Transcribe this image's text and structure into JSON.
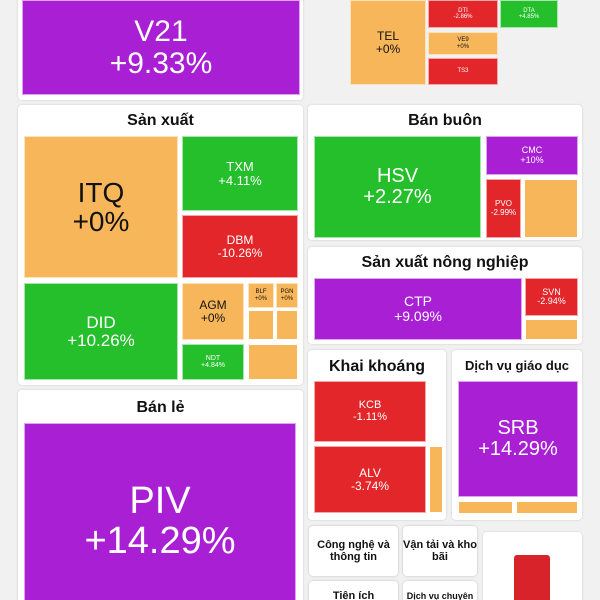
{
  "sectors": [
    {
      "tiles": [
        {
          "ticker": "V21",
          "change": "+9.33%",
          "color": "#a81fd4"
        },
        {
          "ticker": "TEL",
          "change": "+0%",
          "color": "#f8b65b"
        },
        {
          "ticker": "DTI",
          "change": "-2.86%",
          "color": "#e2262a"
        },
        {
          "ticker": "VE9",
          "change": "+0%",
          "color": "#f8b65b"
        },
        {
          "ticker": "TS3",
          "color": "#e2262a"
        },
        {
          "ticker": "DTA",
          "change": "+4.85%",
          "color": "#25bf2c"
        }
      ]
    },
    {
      "title": "Sản xuất",
      "tiles": [
        {
          "ticker": "ITQ",
          "change": "+0%",
          "color": "#f8b65b"
        },
        {
          "ticker": "TXM",
          "change": "+4.11%",
          "color": "#25bf2c"
        },
        {
          "ticker": "DBM",
          "change": "-10.26%",
          "color": "#e2262a"
        },
        {
          "ticker": "DID",
          "change": "+10.26%",
          "color": "#25bf2c"
        },
        {
          "ticker": "AGM",
          "change": "+0%",
          "color": "#f8b65b"
        },
        {
          "ticker": "BLF",
          "change": "+0%",
          "color": "#f8b65b"
        },
        {
          "ticker": "PGN",
          "change": "+0%",
          "color": "#f8b65b"
        },
        {
          "ticker": "NDT",
          "change": "+4.84%",
          "color": "#25bf2c"
        }
      ]
    },
    {
      "title": "Bán buôn",
      "tiles": [
        {
          "ticker": "HSV",
          "change": "+2.27%",
          "color": "#25bf2c"
        },
        {
          "ticker": "CMC",
          "change": "+10%",
          "color": "#a81fd4"
        },
        {
          "ticker": "PVO",
          "change": "-2.99%",
          "color": "#e2262a"
        }
      ]
    },
    {
      "title": "Sản xuất nông nghiệp",
      "tiles": [
        {
          "ticker": "CTP",
          "change": "+9.09%",
          "color": "#a81fd4"
        },
        {
          "ticker": "SVN",
          "change": "-2.94%",
          "color": "#e2262a"
        }
      ]
    },
    {
      "title": "Khai khoáng",
      "tiles": [
        {
          "ticker": "KCB",
          "change": "-1.11%",
          "color": "#e2262a"
        },
        {
          "ticker": "ALV",
          "change": "-3.74%",
          "color": "#e2262a"
        }
      ]
    },
    {
      "title": "Dịch vụ giáo dục",
      "tiles": [
        {
          "ticker": "SRB",
          "change": "+14.29%",
          "color": "#a81fd4"
        }
      ]
    },
    {
      "title": "Bán lẻ",
      "tiles": [
        {
          "ticker": "PIV",
          "change": "+14.29%",
          "color": "#a81fd4"
        }
      ]
    }
  ],
  "cards": [
    "Công nghệ và thông tin",
    "Vận tải và kho bãi",
    "Tiện ích",
    "Dịch vụ chuyên"
  ]
}
